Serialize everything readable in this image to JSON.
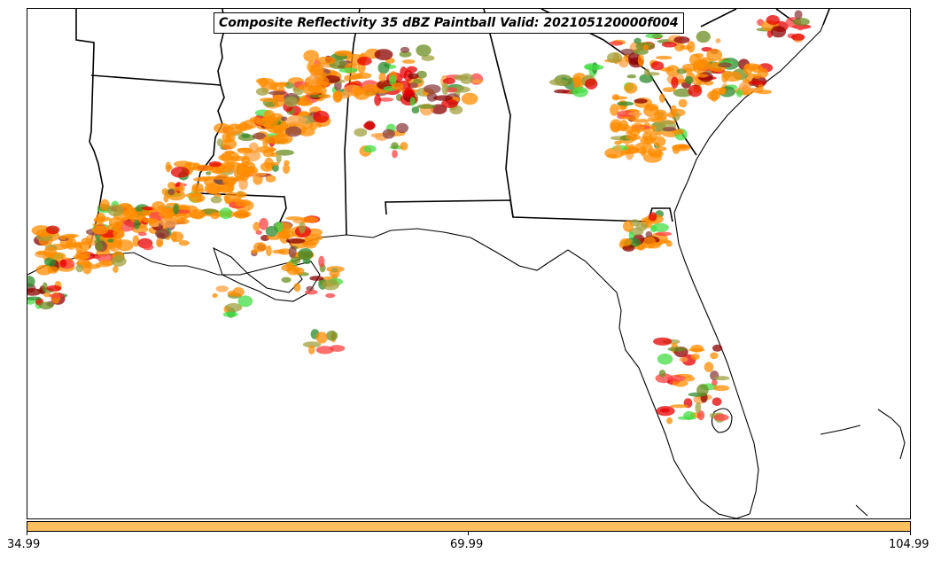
{
  "title": "Composite Reflectivity 35 dBZ Paintball Valid: 202105120000f004",
  "colorbar": {
    "ticks": [
      "34.99",
      "69.99",
      "104.99"
    ],
    "fill_color": "#fdbf5f"
  },
  "map": {
    "region": "Southeastern United States (Louisiana, Mississippi, Alabama, Georgia, Florida, South Carolina)",
    "border_color": "#000000",
    "member_colors": [
      "#ff8c00",
      "#e50000",
      "#ff4040",
      "#2e8b2e",
      "#44dd44",
      "#8b4040",
      "#a0a040",
      "#ffa040",
      "#6b8e23",
      "#8b0000"
    ]
  }
}
